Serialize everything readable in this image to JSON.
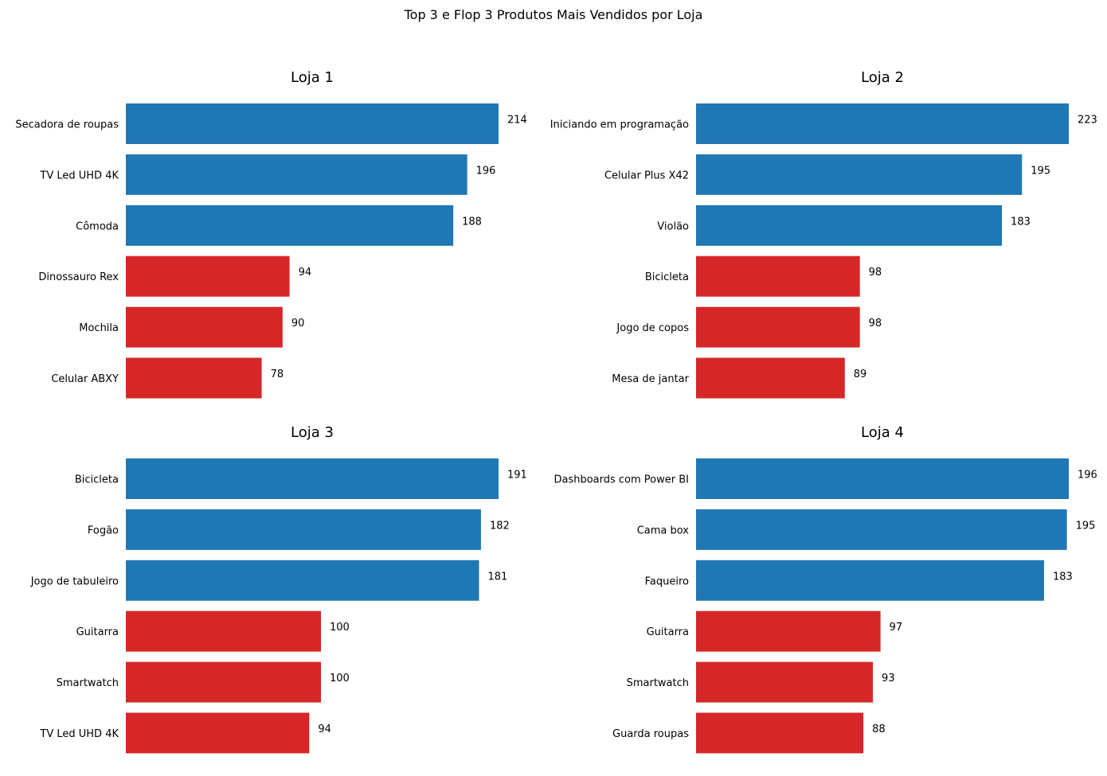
{
  "title": "Top 3 e Flop 3 Produtos Mais Vendidos por Loja",
  "colors": {
    "top": "#1f77b4",
    "flop": "#d62728"
  },
  "chart_data": [
    {
      "type": "bar",
      "orientation": "horizontal",
      "title": "Loja 1",
      "categories": [
        "Secadora de roupas",
        "TV Led UHD 4K",
        "Cômoda",
        "Dinossauro Rex",
        "Mochila",
        "Celular ABXY"
      ],
      "values": [
        214,
        196,
        188,
        94,
        90,
        78
      ],
      "groups": [
        "top",
        "top",
        "top",
        "flop",
        "flop",
        "flop"
      ],
      "xlim": [
        0,
        214
      ]
    },
    {
      "type": "bar",
      "orientation": "horizontal",
      "title": "Loja 2",
      "categories": [
        "Iniciando em programação",
        "Celular Plus X42",
        "Violão",
        "Bicicleta",
        "Jogo de copos",
        "Mesa de jantar"
      ],
      "values": [
        223,
        195,
        183,
        98,
        98,
        89
      ],
      "groups": [
        "top",
        "top",
        "top",
        "flop",
        "flop",
        "flop"
      ],
      "xlim": [
        0,
        223
      ]
    },
    {
      "type": "bar",
      "orientation": "horizontal",
      "title": "Loja 3",
      "categories": [
        "Bicicleta",
        "Fogão",
        "Jogo de tabuleiro",
        "Guitarra",
        "Smartwatch",
        "TV Led UHD 4K"
      ],
      "values": [
        191,
        182,
        181,
        100,
        100,
        94
      ],
      "groups": [
        "top",
        "top",
        "top",
        "flop",
        "flop",
        "flop"
      ],
      "xlim": [
        0,
        191
      ]
    },
    {
      "type": "bar",
      "orientation": "horizontal",
      "title": "Loja 4",
      "categories": [
        "Dashboards com Power BI",
        "Cama box",
        "Faqueiro",
        "Guitarra",
        "Smartwatch",
        "Guarda roupas"
      ],
      "values": [
        196,
        195,
        183,
        97,
        93,
        88
      ],
      "groups": [
        "top",
        "top",
        "top",
        "flop",
        "flop",
        "flop"
      ],
      "xlim": [
        0,
        196
      ]
    }
  ]
}
